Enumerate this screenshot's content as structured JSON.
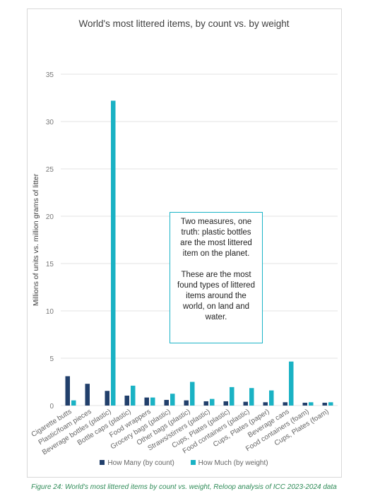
{
  "chart_data": {
    "type": "bar",
    "title": "World's most littered items, by count vs. by weight",
    "ylabel": "Millions of units  vs. million grams of litter",
    "xlabel": "",
    "ylim": [
      0,
      35
    ],
    "yticks": [
      "0",
      "5",
      "10",
      "15",
      "20",
      "25",
      "30",
      "35"
    ],
    "grid": true,
    "legend_position": "bottom",
    "categories": [
      "Cigarette butts",
      "Plastic/foam pieces",
      "Beverage bottles (plastic)",
      "Bottle caps (plastic)",
      "Food wrappers",
      "Grocery bags (plastic)",
      "Other bags (plastic)",
      "Straws/stirrers (plastic)",
      "Cups, Plates (plastic)",
      "Food containers (plastic)",
      "Cups, Plates (paper)",
      "Beverage cans",
      "Food containers (foam)",
      "Cups, Plates (foam)"
    ],
    "series": [
      {
        "name": "How Many (by count)",
        "color": "#213f6b",
        "values": [
          3.1,
          2.3,
          1.55,
          1.05,
          0.85,
          0.6,
          0.55,
          0.45,
          0.45,
          0.4,
          0.35,
          0.35,
          0.3,
          0.3
        ]
      },
      {
        "name": "How Much (by weight)",
        "color": "#1ab2c4",
        "values": [
          0.55,
          0.0,
          32.2,
          2.1,
          0.85,
          1.25,
          2.5,
          0.7,
          1.95,
          1.85,
          1.6,
          4.65,
          0.35,
          0.35
        ]
      }
    ]
  },
  "callout": {
    "line1": "Two measures, one truth: plastic bottles are the most littered item on the planet.",
    "line2": "These are the most found types of littered items around the world, on land and water."
  },
  "caption": "Figure 24: World's most littered items by count vs. weight, Reloop analysis of ICC 2023-2024 data"
}
